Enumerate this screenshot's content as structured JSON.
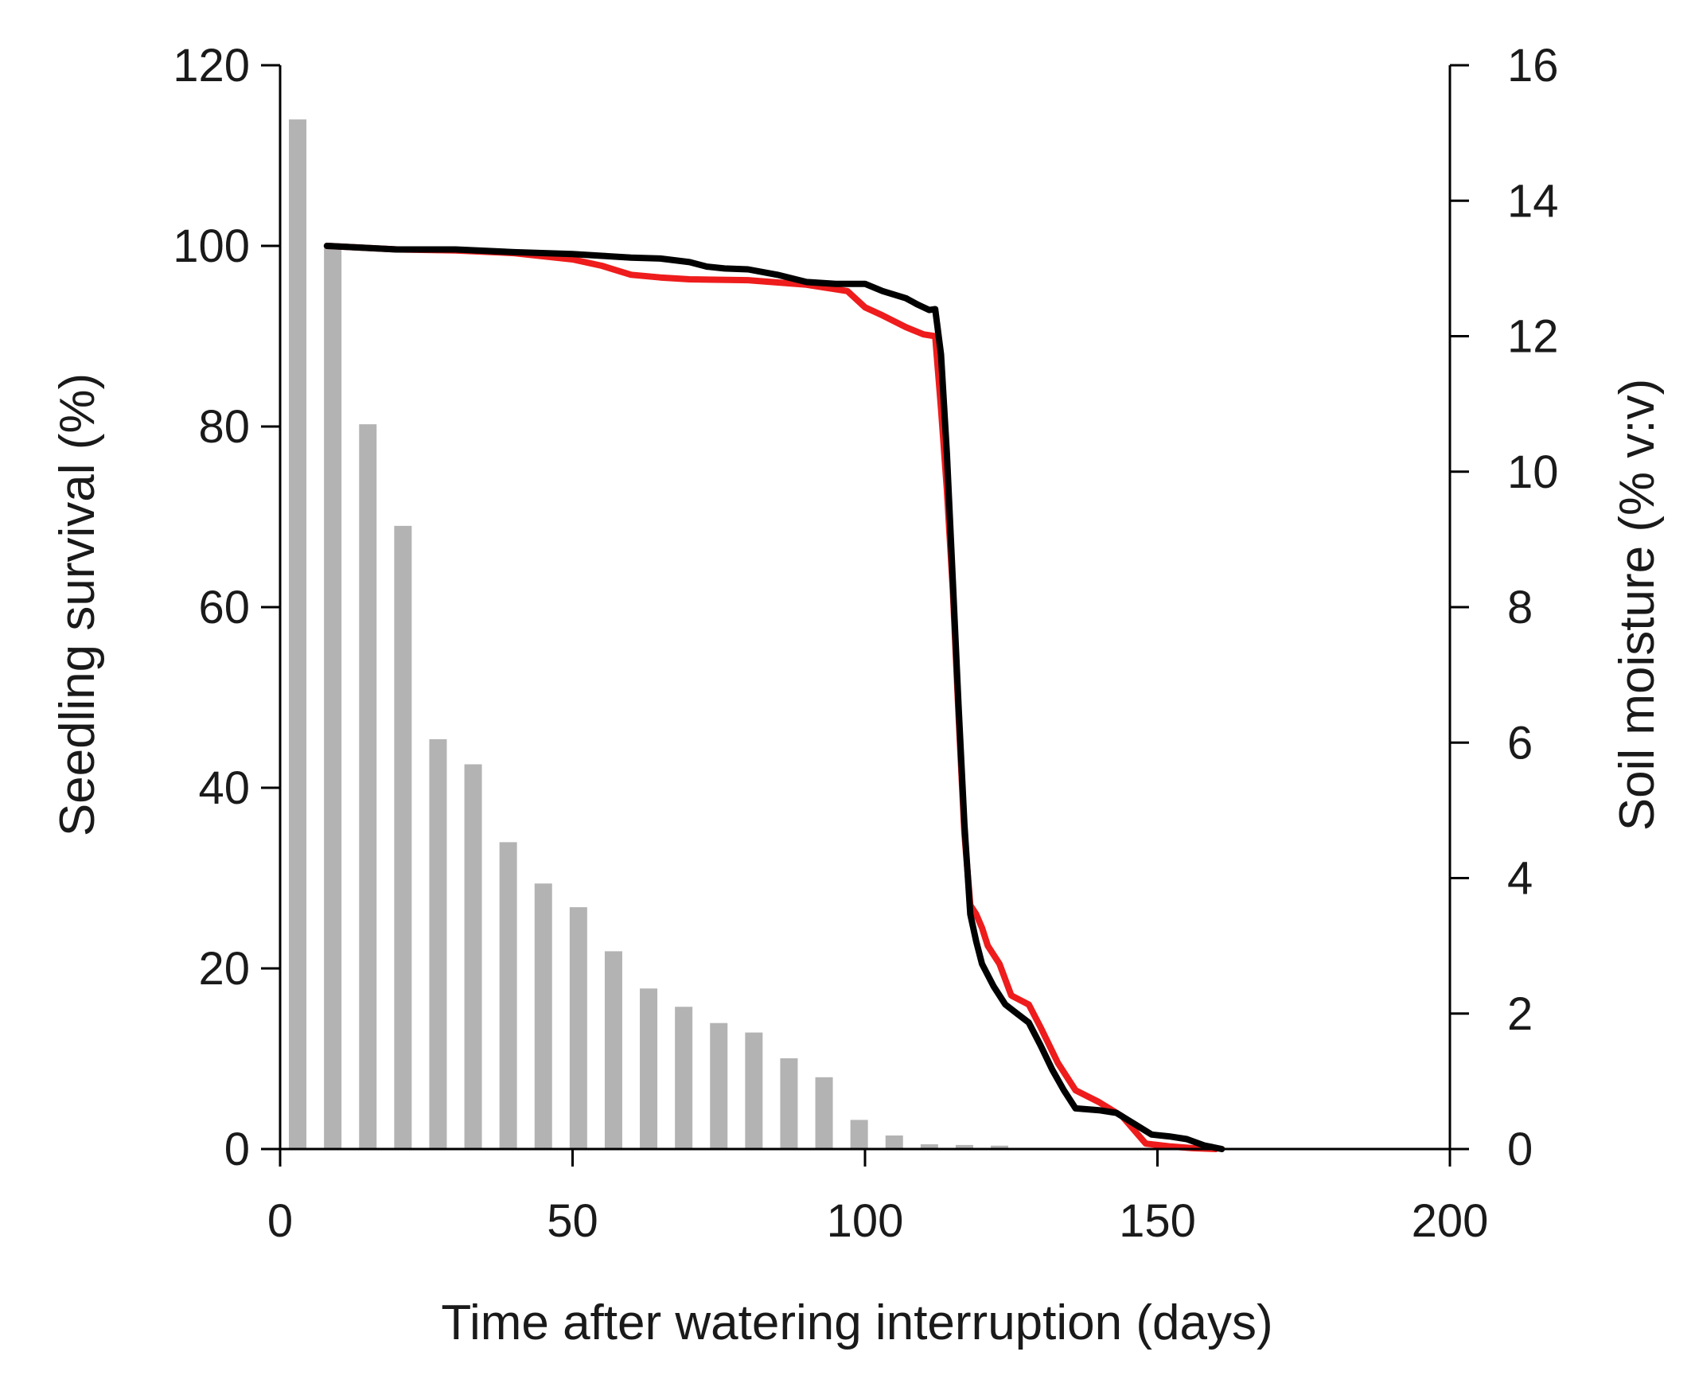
{
  "chart_data": {
    "type": "bar",
    "title": "",
    "xlabel": "Time after watering interruption (days)",
    "ylabel": "Seedling survival  (%)",
    "y2label": "Soil moisture (% v:v)",
    "xlim": [
      0,
      200
    ],
    "ylim": [
      0,
      120
    ],
    "y2lim": [
      0,
      16
    ],
    "xticks": [
      "0",
      "50",
      "100",
      "150",
      "200"
    ],
    "yticks": [
      "0",
      "20",
      "40",
      "60",
      "80",
      "100",
      "120"
    ],
    "y2ticks": [
      "0",
      "2",
      "4",
      "6",
      "8",
      "10",
      "12",
      "14",
      "16"
    ],
    "grid": false,
    "bars": {
      "name": "Soil moisture",
      "axis": "right",
      "color": "#b3b3b3",
      "x": [
        3,
        9,
        15,
        21,
        27,
        33,
        39,
        45,
        51,
        57,
        63,
        69,
        75,
        81,
        87,
        93,
        99,
        105,
        111,
        117,
        123
      ],
      "values": [
        15.2,
        13.3,
        10.7,
        9.2,
        6.05,
        5.68,
        4.53,
        3.92,
        3.57,
        2.92,
        2.37,
        2.1,
        1.86,
        1.72,
        1.34,
        1.06,
        0.43,
        0.2,
        0.07,
        0.06,
        0.05
      ]
    },
    "series": [
      {
        "name": "red",
        "axis": "left",
        "color": "#ee1c1c",
        "x": [
          8,
          20,
          30,
          40,
          50,
          55,
          60,
          65,
          70,
          80,
          90,
          97,
          100,
          103,
          107,
          110,
          112,
          113,
          114,
          115,
          116,
          117,
          118,
          119,
          120,
          121,
          123,
          125,
          128,
          130,
          133,
          136,
          140,
          144,
          148,
          152,
          156,
          160
        ],
        "values": [
          100,
          99.6,
          99.5,
          99.2,
          98.5,
          97.8,
          96.8,
          96.5,
          96.3,
          96.2,
          95.7,
          95.0,
          93.2,
          92.3,
          91.0,
          90.2,
          90.0,
          82,
          73,
          62,
          48,
          35,
          27,
          26,
          24.5,
          22.5,
          20.5,
          17,
          16,
          13.5,
          9.5,
          6.5,
          5.2,
          3.6,
          0.6,
          0.3,
          0.1,
          0
        ]
      },
      {
        "name": "black",
        "axis": "left",
        "color": "#000000",
        "x": [
          8,
          20,
          30,
          40,
          50,
          55,
          60,
          65,
          70,
          73,
          76,
          80,
          85,
          90,
          95,
          100,
          103,
          107,
          109,
          111,
          112,
          113,
          114,
          115,
          116,
          117,
          118,
          119,
          120,
          122,
          124,
          126,
          128,
          130,
          132,
          134,
          136,
          140,
          143,
          146,
          149,
          152,
          155,
          158,
          161
        ],
        "values": [
          100,
          99.6,
          99.6,
          99.3,
          99.1,
          98.9,
          98.7,
          98.6,
          98.2,
          97.7,
          97.5,
          97.4,
          96.8,
          96.0,
          95.8,
          95.8,
          95.0,
          94.2,
          93.5,
          92.9,
          93.0,
          88,
          77,
          63,
          49,
          36,
          26,
          23,
          20.5,
          18,
          16,
          15,
          14,
          11.5,
          8.8,
          6.5,
          4.5,
          4.3,
          4.0,
          2.8,
          1.6,
          1.4,
          1.1,
          0.4,
          0
        ]
      }
    ]
  }
}
